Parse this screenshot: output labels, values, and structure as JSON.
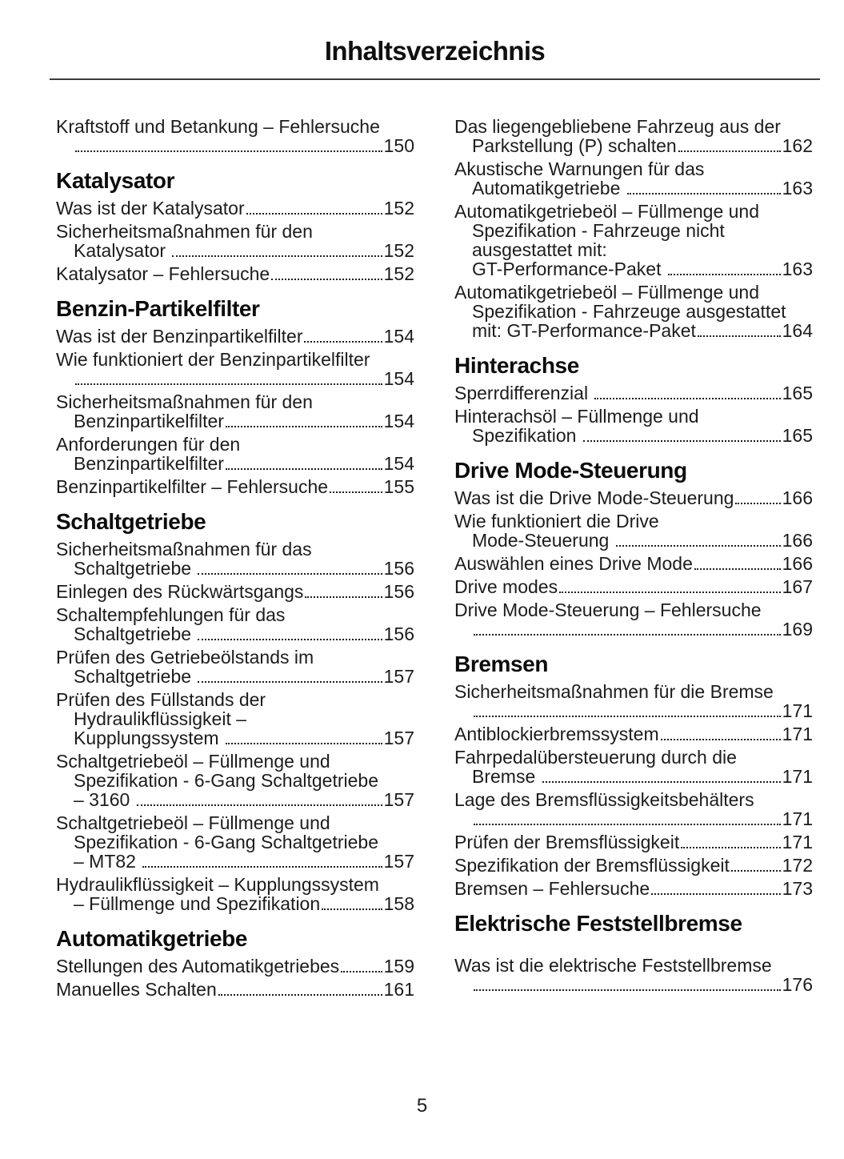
{
  "page": {
    "title": "Inhaltsverzeichnis",
    "number": "5"
  },
  "colors": {
    "text": "#1c1c1c",
    "heading": "#0c0c0c",
    "rule": "#3d3d3d",
    "background": "#ffffff"
  },
  "columns": {
    "left": [
      {
        "type": "entries",
        "items": [
          {
            "pre": [
              "Kraftstoff und Betankung – Fehlersuche"
            ],
            "end": "",
            "page": "150"
          }
        ]
      },
      {
        "type": "section",
        "title": "Katalysator",
        "items": [
          {
            "pre": [],
            "end": "Was ist der Katalysator",
            "page": "152"
          },
          {
            "pre": [
              "Sicherheitsmaßnahmen für den"
            ],
            "end": "Katalysator ",
            "page": "152"
          },
          {
            "pre": [],
            "end": "Katalysator – Fehlersuche",
            "page": "152"
          }
        ]
      },
      {
        "type": "section",
        "title": "Benzin-Partikelfilter",
        "items": [
          {
            "pre": [],
            "end": "Was ist der Benzinpartikelfilter",
            "page": "154"
          },
          {
            "pre": [
              "Wie funktioniert der Benzinpartikelfilter"
            ],
            "end": "",
            "page": "154"
          },
          {
            "pre": [
              "Sicherheitsmaßnahmen für den"
            ],
            "end": "Benzinpartikelfilter",
            "page": "154"
          },
          {
            "pre": [
              "Anforderungen für den"
            ],
            "end": "Benzinpartikelfilter",
            "page": "154"
          },
          {
            "pre": [],
            "end": "Benzinpartikelfilter – Fehlersuche",
            "page": "155"
          }
        ]
      },
      {
        "type": "section",
        "title": "Schaltgetriebe",
        "items": [
          {
            "pre": [
              "Sicherheitsmaßnahmen für das"
            ],
            "end": "Schaltgetriebe ",
            "page": "156"
          },
          {
            "pre": [],
            "end": "Einlegen des Rückwärtsgangs",
            "page": "156"
          },
          {
            "pre": [
              "Schaltempfehlungen für das"
            ],
            "end": "Schaltgetriebe ",
            "page": "156"
          },
          {
            "pre": [
              "Prüfen des Getriebeölstands im"
            ],
            "end": "Schaltgetriebe ",
            "page": "157"
          },
          {
            "pre": [
              "Prüfen des Füllstands der",
              "Hydraulikflüssigkeit –"
            ],
            "end": "Kupplungssystem ",
            "page": "157"
          },
          {
            "pre": [
              "Schaltgetriebeöl – Füllmenge und",
              "Spezifikation - 6-Gang Schaltgetriebe"
            ],
            "end": "– 3160 ",
            "page": "157"
          },
          {
            "pre": [
              "Schaltgetriebeöl – Füllmenge und",
              "Spezifikation - 6-Gang Schaltgetriebe"
            ],
            "end": "– MT82 ",
            "page": "157"
          },
          {
            "pre": [
              "Hydraulikflüssigkeit – Kupplungssystem"
            ],
            "end": "– Füllmenge und Spezifikation",
            "page": "158"
          }
        ]
      },
      {
        "type": "section",
        "title": "Automatikgetriebe",
        "items": [
          {
            "pre": [],
            "end": "Stellungen des Automatikgetriebes",
            "page": "159"
          },
          {
            "pre": [],
            "end": "Manuelles Schalten",
            "page": "161"
          }
        ]
      }
    ],
    "right": [
      {
        "type": "entries",
        "items": [
          {
            "pre": [
              "Das liegengebliebene Fahrzeug aus der"
            ],
            "end": "Parkstellung (P) schalten",
            "page": "162"
          },
          {
            "pre": [
              "Akustische Warnungen für das"
            ],
            "end": "Automatikgetriebe ",
            "page": "163"
          },
          {
            "pre": [
              "Automatikgetriebeöl – Füllmenge und",
              "Spezifikation - Fahrzeuge nicht",
              "ausgestattet mit:"
            ],
            "end": "GT-Performance-Paket ",
            "page": "163"
          },
          {
            "pre": [
              "Automatikgetriebeöl – Füllmenge und",
              "Spezifikation - Fahrzeuge ausgestattet"
            ],
            "end": "mit: GT-Performance-Paket",
            "page": "164"
          }
        ]
      },
      {
        "type": "section",
        "title": "Hinterachse",
        "items": [
          {
            "pre": [],
            "end": "Sperrdifferenzial ",
            "page": "165"
          },
          {
            "pre": [
              "Hinterachsöl – Füllmenge und"
            ],
            "end": "Spezifikation ",
            "page": "165"
          }
        ]
      },
      {
        "type": "section",
        "title": "Drive Mode-Steuerung",
        "items": [
          {
            "pre": [],
            "end": "Was ist die Drive Mode-Steuerung",
            "page": "166"
          },
          {
            "pre": [
              "Wie funktioniert die Drive"
            ],
            "end": "Mode-Steuerung ",
            "page": "166"
          },
          {
            "pre": [],
            "end": "Auswählen eines Drive Mode",
            "page": "166"
          },
          {
            "pre": [],
            "end": "Drive modes",
            "page": "167"
          },
          {
            "pre": [
              "Drive Mode-Steuerung – Fehlersuche"
            ],
            "end": "",
            "page": "169"
          }
        ]
      },
      {
        "type": "section",
        "title": "Bremsen",
        "items": [
          {
            "pre": [
              "Sicherheitsmaßnahmen für die Bremse"
            ],
            "end": "",
            "page": "171"
          },
          {
            "pre": [],
            "end": "Antiblockierbremssystem",
            "page": "171"
          },
          {
            "pre": [
              "Fahrpedalübersteuerung durch die"
            ],
            "end": "Bremse ",
            "page": "171"
          },
          {
            "pre": [
              "Lage des Bremsflüssigkeitsbehälters"
            ],
            "end": "",
            "page": "171"
          },
          {
            "pre": [],
            "end": "Prüfen der Bremsflüssigkeit",
            "page": "171"
          },
          {
            "pre": [],
            "end": "Spezifikation der Bremsflüssigkeit",
            "page": "172"
          },
          {
            "pre": [],
            "end": "Bremsen – Fehlersuche",
            "page": "173"
          }
        ]
      },
      {
        "type": "section",
        "title": "Elektrische Feststellbremse",
        "extra_gap": true,
        "items": [
          {
            "pre": [
              "Was ist die elektrische Feststellbremse"
            ],
            "end": "",
            "page": "176"
          }
        ]
      }
    ]
  }
}
